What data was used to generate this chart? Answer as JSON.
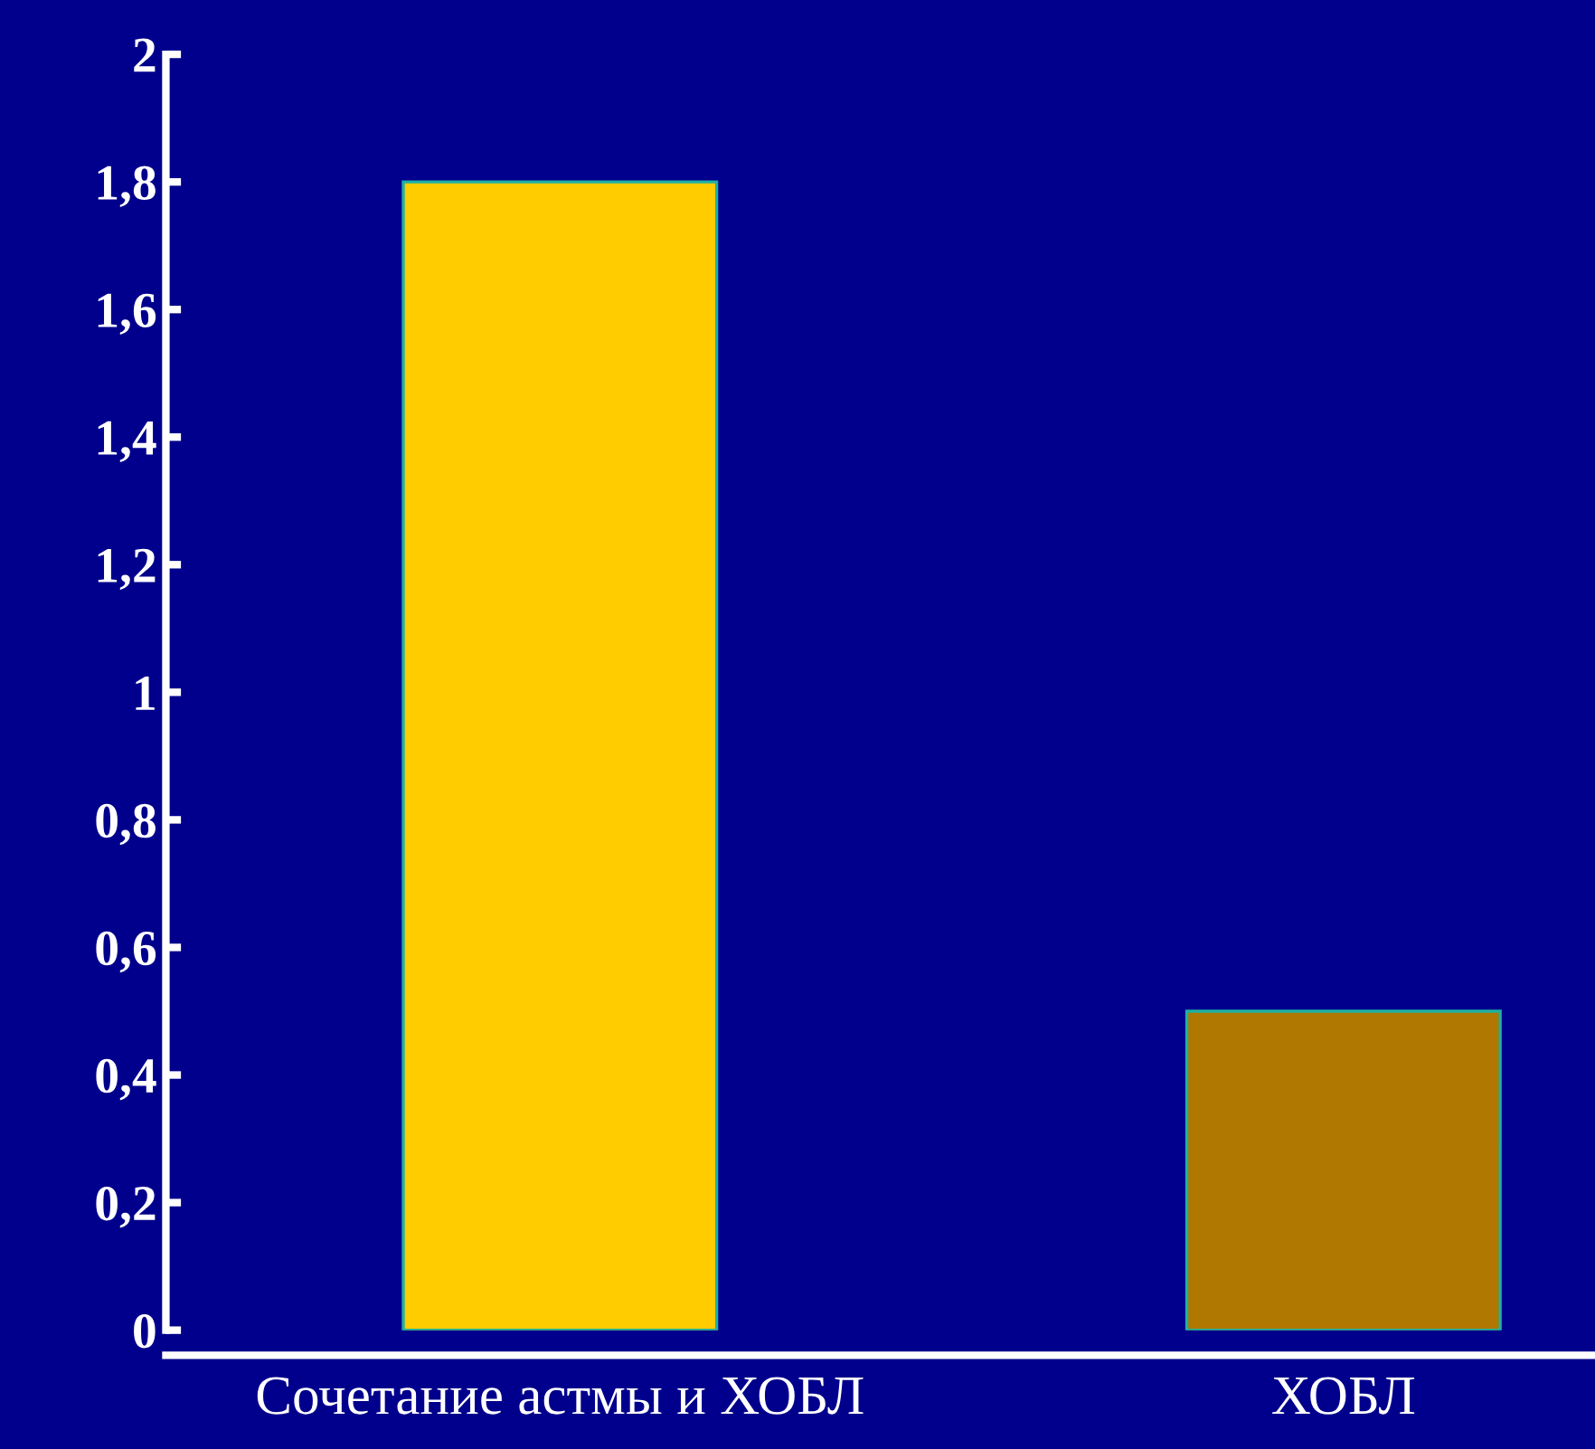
{
  "chart_data": {
    "type": "bar",
    "categories": [
      "Сочетание астмы и ХОБЛ",
      "ХОБЛ"
    ],
    "values": [
      1.8,
      0.5
    ],
    "colors": [
      "#ffcc00",
      "#b07800"
    ],
    "ylim": [
      0,
      2
    ],
    "yticks": [
      0,
      {
        "value": 0.2,
        "label": "0,2"
      },
      {
        "value": 0.4,
        "label": "0,4"
      },
      {
        "value": 0.6,
        "label": "0,6"
      },
      {
        "value": 0.8,
        "label": "0,8"
      },
      1,
      {
        "value": 1.2,
        "label": "1,2"
      },
      {
        "value": 1.4,
        "label": "1,4"
      },
      {
        "value": 1.6,
        "label": "1,6"
      },
      {
        "value": 1.8,
        "label": "1,8"
      },
      2
    ],
    "grid": false,
    "legend": false
  }
}
